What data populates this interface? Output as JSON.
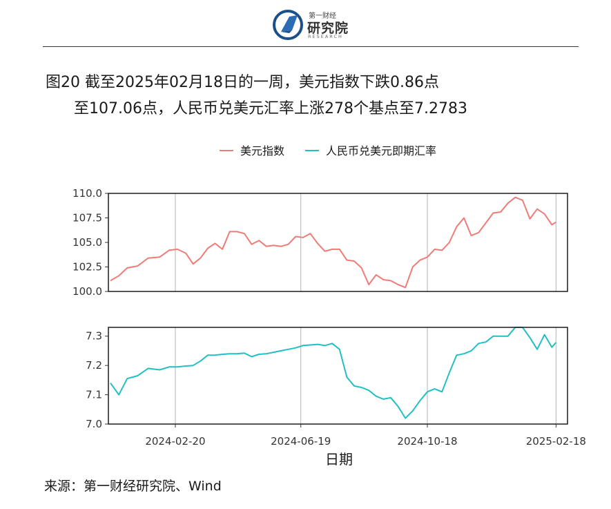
{
  "header": {
    "logo_small": "第一财经",
    "logo_main": "研究院",
    "logo_sub": "RESEARCH"
  },
  "title": {
    "line1": "图20  截至2025年02月18日的一周，美元指数下跌0.86点",
    "line2": "至107.06点，人民币兑美元汇率上涨278个基点至7.2783"
  },
  "source": "来源：第一财经研究院、Wind",
  "colors": {
    "usd": "#f07b76",
    "cny": "#1fbfc4"
  },
  "chart_data": {
    "type": "line",
    "xlabel": "日期",
    "x_ticks": [
      "2024-02-20",
      "2024-06-19",
      "2024-10-18",
      "2025-02-18"
    ],
    "x_range": [
      "2023-12-18",
      "2025-03-01"
    ],
    "legend": [
      "美元指数",
      "人民币兑美元即期汇率"
    ],
    "legend_position": "top",
    "grid": "vertical",
    "panels": [
      {
        "name": "美元指数",
        "ylim": [
          100.0,
          110.0
        ],
        "y_ticks": [
          "100.0",
          "102.5",
          "105.0",
          "107.5",
          "110.0"
        ],
        "x": [
          "2023-12-20",
          "2023-12-28",
          "2024-01-05",
          "2024-01-15",
          "2024-01-25",
          "2024-02-05",
          "2024-02-14",
          "2024-02-22",
          "2024-03-01",
          "2024-03-08",
          "2024-03-15",
          "2024-03-22",
          "2024-03-29",
          "2024-04-05",
          "2024-04-12",
          "2024-04-19",
          "2024-04-26",
          "2024-05-03",
          "2024-05-10",
          "2024-05-17",
          "2024-05-24",
          "2024-05-31",
          "2024-06-07",
          "2024-06-14",
          "2024-06-21",
          "2024-06-28",
          "2024-07-05",
          "2024-07-12",
          "2024-07-19",
          "2024-07-26",
          "2024-08-02",
          "2024-08-09",
          "2024-08-16",
          "2024-08-23",
          "2024-08-30",
          "2024-09-06",
          "2024-09-13",
          "2024-09-20",
          "2024-09-27",
          "2024-10-04",
          "2024-10-11",
          "2024-10-18",
          "2024-10-25",
          "2024-11-01",
          "2024-11-08",
          "2024-11-15",
          "2024-11-22",
          "2024-11-29",
          "2024-12-06",
          "2024-12-13",
          "2024-12-20",
          "2024-12-27",
          "2025-01-03",
          "2025-01-10",
          "2025-01-17",
          "2025-01-24",
          "2025-01-31",
          "2025-02-07",
          "2025-02-14",
          "2025-02-18"
        ],
        "values": [
          101.1,
          101.6,
          102.4,
          102.6,
          103.4,
          103.5,
          104.2,
          104.3,
          103.9,
          102.8,
          103.4,
          104.4,
          104.9,
          104.3,
          106.1,
          106.1,
          105.9,
          104.8,
          105.2,
          104.6,
          104.7,
          104.6,
          104.8,
          105.6,
          105.5,
          105.9,
          104.9,
          104.1,
          104.3,
          104.3,
          103.2,
          103.1,
          102.4,
          100.7,
          101.7,
          101.2,
          101.1,
          100.7,
          100.4,
          102.5,
          103.2,
          103.5,
          104.3,
          104.2,
          105.0,
          106.6,
          107.5,
          105.7,
          106.0,
          107.0,
          108.0,
          108.1,
          109.0,
          109.6,
          109.3,
          107.4,
          108.4,
          107.9,
          106.8,
          107.06
        ]
      },
      {
        "name": "人民币兑美元即期汇率",
        "ylim": [
          7.0,
          7.33
        ],
        "y_ticks": [
          "7.0",
          "7.1",
          "7.2",
          "7.3"
        ],
        "x": [
          "2023-12-20",
          "2023-12-28",
          "2024-01-05",
          "2024-01-15",
          "2024-01-25",
          "2024-02-05",
          "2024-02-14",
          "2024-02-22",
          "2024-03-01",
          "2024-03-08",
          "2024-03-15",
          "2024-03-22",
          "2024-03-29",
          "2024-04-05",
          "2024-04-12",
          "2024-04-19",
          "2024-04-26",
          "2024-05-03",
          "2024-05-10",
          "2024-05-17",
          "2024-05-24",
          "2024-05-31",
          "2024-06-07",
          "2024-06-14",
          "2024-06-21",
          "2024-06-28",
          "2024-07-05",
          "2024-07-12",
          "2024-07-19",
          "2024-07-26",
          "2024-08-02",
          "2024-08-09",
          "2024-08-16",
          "2024-08-23",
          "2024-08-30",
          "2024-09-06",
          "2024-09-13",
          "2024-09-20",
          "2024-09-27",
          "2024-10-04",
          "2024-10-11",
          "2024-10-18",
          "2024-10-25",
          "2024-11-01",
          "2024-11-08",
          "2024-11-15",
          "2024-11-22",
          "2024-11-29",
          "2024-12-06",
          "2024-12-13",
          "2024-12-20",
          "2024-12-27",
          "2025-01-03",
          "2025-01-10",
          "2025-01-17",
          "2025-01-24",
          "2025-01-31",
          "2025-02-07",
          "2025-02-14",
          "2025-02-18"
        ],
        "values": [
          7.14,
          7.1,
          7.155,
          7.165,
          7.19,
          7.185,
          7.195,
          7.195,
          7.198,
          7.2,
          7.215,
          7.235,
          7.235,
          7.238,
          7.24,
          7.24,
          7.242,
          7.23,
          7.238,
          7.24,
          7.245,
          7.25,
          7.255,
          7.26,
          7.268,
          7.27,
          7.272,
          7.268,
          7.275,
          7.255,
          7.16,
          7.13,
          7.125,
          7.115,
          7.095,
          7.085,
          7.09,
          7.06,
          7.02,
          7.045,
          7.08,
          7.11,
          7.12,
          7.11,
          7.175,
          7.235,
          7.24,
          7.25,
          7.275,
          7.28,
          7.3,
          7.3,
          7.3,
          7.33,
          7.33,
          7.295,
          7.255,
          7.305,
          7.262,
          7.2783
        ]
      }
    ]
  }
}
